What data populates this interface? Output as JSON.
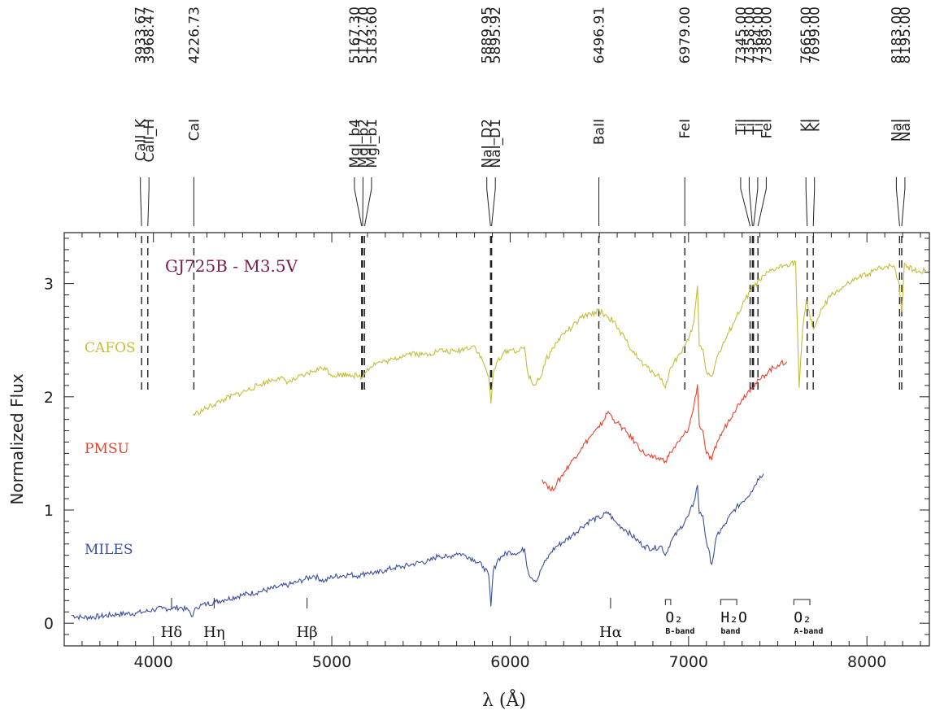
{
  "chart_data": {
    "type": "line",
    "title": "GJ725B - M3.5V",
    "xlabel": "λ (Å)",
    "ylabel": "Normalized Flux",
    "xlim": [
      3500,
      8350
    ],
    "ylim": [
      -0.2,
      3.45
    ],
    "x_ticks": [
      4000,
      5000,
      6000,
      7000,
      8000
    ],
    "x_tick_labels": [
      "4000",
      "5000",
      "6000",
      "7000",
      "8000"
    ],
    "y_ticks": [
      0,
      1,
      2,
      3
    ],
    "y_tick_labels": [
      "0",
      "1",
      "2",
      "3"
    ],
    "grid": false,
    "series": [
      {
        "name": "MILES",
        "color": "#3a4fa0",
        "x": [
          3540,
          3600,
          3700,
          3800,
          3900,
          3950,
          4000,
          4050,
          4100,
          4150,
          4200,
          4220,
          4240,
          4270,
          4300,
          4350,
          4400,
          4500,
          4600,
          4700,
          4760,
          4800,
          4850,
          4900,
          4960,
          5000,
          5100,
          5150,
          5170,
          5200,
          5250,
          5300,
          5350,
          5400,
          5450,
          5500,
          5550,
          5600,
          5650,
          5700,
          5750,
          5800,
          5850,
          5880,
          5892,
          5905,
          5930,
          5960,
          6000,
          6050,
          6080,
          6100,
          6120,
          6150,
          6180,
          6200,
          6230,
          6260,
          6300,
          6350,
          6400,
          6450,
          6500,
          6550,
          6580,
          6600,
          6650,
          6700,
          6750,
          6800,
          6850,
          6870,
          6900,
          6950,
          7000,
          7030,
          7050,
          7060,
          7080,
          7100,
          7130,
          7160,
          7200,
          7250,
          7300,
          7350,
          7400,
          7420
        ],
        "y": [
          0.07,
          0.05,
          0.06,
          0.08,
          0.09,
          0.1,
          0.12,
          0.13,
          0.13,
          0.14,
          0.11,
          0.06,
          0.14,
          0.16,
          0.17,
          0.19,
          0.21,
          0.25,
          0.28,
          0.32,
          0.34,
          0.36,
          0.39,
          0.42,
          0.37,
          0.41,
          0.43,
          0.42,
          0.43,
          0.45,
          0.44,
          0.47,
          0.49,
          0.5,
          0.52,
          0.54,
          0.55,
          0.6,
          0.58,
          0.62,
          0.6,
          0.56,
          0.5,
          0.42,
          0.15,
          0.46,
          0.56,
          0.6,
          0.63,
          0.62,
          0.66,
          0.46,
          0.4,
          0.38,
          0.5,
          0.55,
          0.63,
          0.68,
          0.72,
          0.78,
          0.85,
          0.91,
          0.93,
          0.98,
          0.91,
          0.88,
          0.82,
          0.75,
          0.68,
          0.66,
          0.68,
          0.6,
          0.72,
          0.83,
          0.95,
          1.07,
          1.22,
          0.97,
          0.95,
          0.72,
          0.52,
          0.78,
          0.86,
          0.99,
          1.07,
          1.16,
          1.3,
          1.32
        ]
      },
      {
        "name": "PMSU",
        "color": "#e8422c",
        "x": [
          6180,
          6200,
          6230,
          6260,
          6300,
          6350,
          6400,
          6450,
          6500,
          6550,
          6580,
          6600,
          6650,
          6700,
          6750,
          6800,
          6850,
          6870,
          6900,
          6950,
          7000,
          7030,
          7050,
          7060,
          7080,
          7100,
          7130,
          7160,
          7200,
          7250,
          7300,
          7350,
          7400,
          7450,
          7500,
          7550
        ],
        "y": [
          1.27,
          1.24,
          1.17,
          1.23,
          1.33,
          1.44,
          1.55,
          1.65,
          1.73,
          1.87,
          1.8,
          1.77,
          1.69,
          1.6,
          1.5,
          1.46,
          1.45,
          1.43,
          1.51,
          1.61,
          1.72,
          1.92,
          2.11,
          1.75,
          1.7,
          1.5,
          1.44,
          1.6,
          1.72,
          1.86,
          1.98,
          2.08,
          2.15,
          2.23,
          2.28,
          2.31
        ]
      },
      {
        "name": "CAFOS",
        "color": "#c4bd3a",
        "x": [
          4220,
          4250,
          4300,
          4400,
          4500,
          4600,
          4700,
          4760,
          4800,
          4850,
          4900,
          4960,
          5000,
          5100,
          5150,
          5170,
          5200,
          5250,
          5300,
          5350,
          5400,
          5450,
          5500,
          5550,
          5600,
          5650,
          5700,
          5750,
          5800,
          5850,
          5880,
          5892,
          5905,
          5930,
          5960,
          6000,
          6050,
          6080,
          6100,
          6130,
          6150,
          6180,
          6200,
          6230,
          6260,
          6300,
          6350,
          6400,
          6450,
          6500,
          6550,
          6580,
          6600,
          6650,
          6700,
          6750,
          6800,
          6850,
          6870,
          6900,
          6950,
          7000,
          7030,
          7050,
          7060,
          7080,
          7100,
          7130,
          7160,
          7200,
          7250,
          7300,
          7350,
          7400,
          7450,
          7500,
          7550,
          7600,
          7620,
          7640,
          7660,
          7700,
          7750,
          7800,
          7850,
          7900,
          7950,
          8000,
          8050,
          8100,
          8150,
          8180,
          8195,
          8210,
          8230,
          8260,
          8300,
          8330
        ],
        "y": [
          1.84,
          1.86,
          1.9,
          1.98,
          2.04,
          2.11,
          2.17,
          2.13,
          2.16,
          2.19,
          2.23,
          2.26,
          2.19,
          2.2,
          2.18,
          2.17,
          2.25,
          2.3,
          2.31,
          2.33,
          2.37,
          2.39,
          2.37,
          2.38,
          2.41,
          2.4,
          2.4,
          2.43,
          2.45,
          2.3,
          2.18,
          1.94,
          2.2,
          2.32,
          2.38,
          2.42,
          2.4,
          2.44,
          2.2,
          2.1,
          2.14,
          2.2,
          2.33,
          2.4,
          2.48,
          2.56,
          2.62,
          2.7,
          2.73,
          2.76,
          2.7,
          2.67,
          2.6,
          2.5,
          2.37,
          2.28,
          2.22,
          2.16,
          2.08,
          2.26,
          2.38,
          2.5,
          2.66,
          2.98,
          2.45,
          2.42,
          2.22,
          2.18,
          2.35,
          2.48,
          2.65,
          2.8,
          2.95,
          3.03,
          3.1,
          3.14,
          3.17,
          3.19,
          2.08,
          2.6,
          2.85,
          2.6,
          2.78,
          2.9,
          2.95,
          3.0,
          3.05,
          3.08,
          3.12,
          3.15,
          3.16,
          3.0,
          2.75,
          3.18,
          3.15,
          3.12,
          3.1,
          3.12
        ]
      }
    ],
    "series_labels": [
      "CAFOS",
      "PMSU",
      "MILES"
    ],
    "top_lines": [
      {
        "wavelength_label": "3933.67",
        "ion_label": "CaII_K",
        "x": 3933.67
      },
      {
        "wavelength_label": "3968.47",
        "ion_label": "CaII_H",
        "x": 3968.47
      },
      {
        "wavelength_label": "4226.73",
        "ion_label": "CaI",
        "x": 4226.73
      },
      {
        "wavelength_label": "5167.30",
        "ion_label": "MgI_b4",
        "x": 5167.3
      },
      {
        "wavelength_label": "5172.70",
        "ion_label": "MgI_b2",
        "x": 5172.7
      },
      {
        "wavelength_label": "5183.60",
        "ion_label": "MgI_b1",
        "x": 5183.6
      },
      {
        "wavelength_label": "5889.95",
        "ion_label": "NaI_D2",
        "x": 5889.95
      },
      {
        "wavelength_label": "5895.92",
        "ion_label": "NaI_D1",
        "x": 5895.92
      },
      {
        "wavelength_label": "6496.91",
        "ion_label": "BaII",
        "x": 6496.91
      },
      {
        "wavelength_label": "6979.00",
        "ion_label": "FeI",
        "x": 6979.0
      },
      {
        "wavelength_label": "7345.00",
        "ion_label": "TiI",
        "x": 7345.0
      },
      {
        "wavelength_label": "7358.00",
        "ion_label": "TiI",
        "x": 7358.0
      },
      {
        "wavelength_label": "7364.00",
        "ion_label": "TiI",
        "x": 7364.0
      },
      {
        "wavelength_label": "7389.00",
        "ion_label": "FeI",
        "x": 7389.0
      },
      {
        "wavelength_label": "7665.00",
        "ion_label": "KI",
        "x": 7665.0
      },
      {
        "wavelength_label": "7699.00",
        "ion_label": "KI",
        "x": 7699.0
      },
      {
        "wavelength_label": "8183.00",
        "ion_label": "NaI",
        "x": 8183.0
      },
      {
        "wavelength_label": "8195.00",
        "ion_label": "NaI",
        "x": 8195.0
      }
    ],
    "bottom_markers": [
      {
        "label": "Hδ",
        "sublabel": "",
        "x": 4101.7,
        "kind": "tick"
      },
      {
        "label": "Hη",
        "sublabel": "",
        "x": 4340.5,
        "kind": "tick"
      },
      {
        "label": "Hβ",
        "sublabel": "",
        "x": 4861.3,
        "kind": "tick"
      },
      {
        "label": "Hα",
        "sublabel": "",
        "x": 6562.8,
        "kind": "tick"
      },
      {
        "label": "O₂",
        "sublabel": "B-band",
        "x": 6870,
        "x2": 6900,
        "kind": "bracket"
      },
      {
        "label": "H₂O",
        "sublabel": "band",
        "x": 7180,
        "x2": 7270,
        "kind": "bracket"
      },
      {
        "label": "O₂",
        "sublabel": "A-band",
        "x": 7590,
        "x2": 7680,
        "kind": "bracket"
      }
    ]
  }
}
